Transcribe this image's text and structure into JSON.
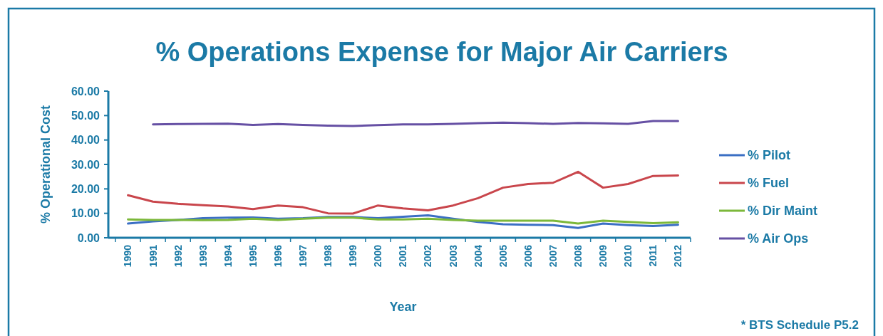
{
  "chart_data": {
    "type": "line",
    "title": "% Operations Expense for Major Air Carriers",
    "xlabel": "Year",
    "ylabel": "% Operational Cost",
    "categories": [
      "1990",
      "1991",
      "1992",
      "1993",
      "1994",
      "1995",
      "1996",
      "1997",
      "1998",
      "1999",
      "2000",
      "2001",
      "2002",
      "2003",
      "2004",
      "2005",
      "2006",
      "2007",
      "2008",
      "2009",
      "2010",
      "2011",
      "2012"
    ],
    "series": [
      {
        "name": "% Pilot",
        "color": "#3b6fc4",
        "values": [
          5.8,
          6.7,
          7.3,
          8.0,
          8.2,
          8.3,
          7.8,
          8.0,
          8.5,
          8.5,
          8.0,
          8.6,
          9.2,
          7.8,
          6.5,
          5.5,
          5.3,
          5.2,
          4.0,
          5.8,
          5.2,
          4.8,
          5.3
        ]
      },
      {
        "name": "% Fuel",
        "color": "#c9464c",
        "values": [
          17.4,
          14.8,
          13.9,
          13.3,
          12.8,
          11.7,
          13.2,
          12.5,
          10.0,
          9.9,
          13.2,
          12.0,
          11.2,
          13.2,
          16.2,
          20.5,
          22.0,
          22.5,
          27.0,
          20.5,
          22.0,
          25.3,
          25.5
        ]
      },
      {
        "name": "% Dir Maint",
        "color": "#7cb83a",
        "values": [
          7.5,
          7.3,
          7.3,
          7.2,
          7.3,
          7.8,
          7.3,
          7.8,
          8.2,
          8.2,
          7.5,
          7.5,
          7.8,
          7.3,
          7.0,
          7.0,
          7.0,
          7.0,
          5.8,
          7.0,
          6.5,
          6.0,
          6.3
        ]
      },
      {
        "name": "% Air Ops",
        "color": "#6650a4",
        "values": [
          null,
          46.4,
          46.5,
          46.6,
          46.7,
          46.2,
          46.5,
          46.2,
          45.9,
          45.7,
          46.1,
          46.4,
          46.4,
          46.6,
          46.9,
          47.1,
          46.9,
          46.6,
          47.0,
          46.8,
          46.6,
          47.8,
          47.8
        ]
      }
    ],
    "ylim": [
      0,
      60
    ],
    "yticks": [
      {
        "value": 0,
        "label": "0.00"
      },
      {
        "value": 10,
        "label": "10.00"
      },
      {
        "value": 20,
        "label": "20.00"
      },
      {
        "value": 30,
        "label": "30.00"
      },
      {
        "value": 40,
        "label": "40.00"
      },
      {
        "value": 50,
        "label": "50.00"
      },
      {
        "value": 60,
        "label": "60.00"
      }
    ],
    "legend": "right",
    "grid": false,
    "marker": "none",
    "line_style": "solid",
    "annotations": [
      "* BTS Schedule P5.2"
    ]
  }
}
